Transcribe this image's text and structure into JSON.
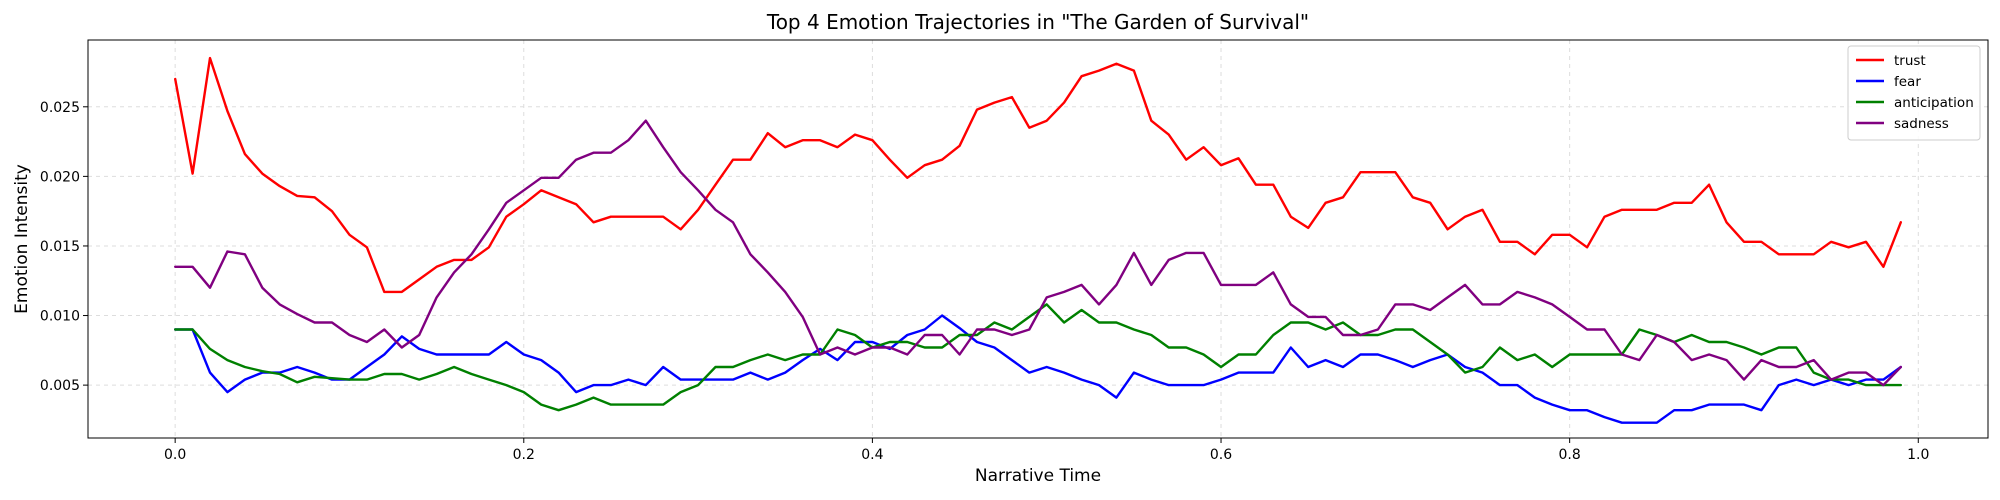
{
  "chart_data": {
    "type": "line",
    "title": "Top 4 Emotion Trajectories in \"The Garden of Survival\"",
    "xlabel": "Narrative Time",
    "ylabel": "Emotion Intensity",
    "xlim": [
      -0.05,
      1.04
    ],
    "ylim": [
      0.0012,
      0.0298
    ],
    "xticks": [
      0.0,
      0.2,
      0.4,
      0.6,
      0.8,
      1.0
    ],
    "xtick_labels": [
      "0.0",
      "0.2",
      "0.4",
      "0.6",
      "0.8",
      "1.0"
    ],
    "yticks": [
      0.005,
      0.01,
      0.015,
      0.02,
      0.025
    ],
    "ytick_labels": [
      "0.005",
      "0.010",
      "0.015",
      "0.020",
      "0.025"
    ],
    "grid": true,
    "legend_position": "top-right",
    "x": [
      0.0,
      0.01,
      0.02,
      0.03,
      0.04,
      0.05,
      0.06,
      0.07,
      0.08,
      0.09,
      0.1,
      0.11,
      0.12,
      0.13,
      0.14,
      0.15,
      0.16,
      0.17,
      0.18,
      0.19,
      0.2,
      0.21,
      0.22,
      0.23,
      0.24,
      0.25,
      0.26,
      0.27,
      0.28,
      0.29,
      0.3,
      0.31,
      0.32,
      0.33,
      0.34,
      0.35,
      0.36,
      0.37,
      0.38,
      0.39,
      0.4,
      0.41,
      0.42,
      0.43,
      0.44,
      0.45,
      0.46,
      0.47,
      0.48,
      0.49,
      0.5,
      0.51,
      0.52,
      0.53,
      0.54,
      0.55,
      0.56,
      0.57,
      0.58,
      0.59,
      0.6,
      0.61,
      0.62,
      0.63,
      0.64,
      0.65,
      0.66,
      0.67,
      0.68,
      0.69,
      0.7,
      0.71,
      0.72,
      0.73,
      0.74,
      0.75,
      0.76,
      0.77,
      0.78,
      0.79,
      0.8,
      0.81,
      0.82,
      0.83,
      0.84,
      0.85,
      0.86,
      0.87,
      0.88,
      0.89,
      0.9,
      0.91,
      0.92,
      0.93,
      0.94,
      0.95,
      0.96,
      0.97,
      0.98,
      0.99
    ],
    "series": [
      {
        "name": "trust",
        "color": "#ff0000",
        "values": [
          0.027,
          0.0202,
          0.0285,
          0.0247,
          0.0216,
          0.0202,
          0.0193,
          0.0186,
          0.0185,
          0.0175,
          0.0158,
          0.0149,
          0.0117,
          0.0117,
          0.0126,
          0.0135,
          0.014,
          0.014,
          0.0149,
          0.0171,
          0.018,
          0.019,
          0.0185,
          0.018,
          0.0167,
          0.0171,
          0.0171,
          0.0171,
          0.0171,
          0.0162,
          0.0176,
          0.0194,
          0.0212,
          0.0212,
          0.0231,
          0.0221,
          0.0226,
          0.0226,
          0.0221,
          0.023,
          0.0226,
          0.0212,
          0.0199,
          0.0208,
          0.0212,
          0.0222,
          0.0248,
          0.0253,
          0.0257,
          0.0235,
          0.024,
          0.0253,
          0.0272,
          0.0276,
          0.0281,
          0.0276,
          0.024,
          0.023,
          0.0212,
          0.0221,
          0.0208,
          0.0213,
          0.0194,
          0.0194,
          0.0171,
          0.0163,
          0.0181,
          0.0185,
          0.0203,
          0.0203,
          0.0203,
          0.0185,
          0.0181,
          0.0162,
          0.0171,
          0.0176,
          0.0153,
          0.0153,
          0.0144,
          0.0158,
          0.0158,
          0.0149,
          0.0171,
          0.0176,
          0.0176,
          0.0176,
          0.0181,
          0.0181,
          0.0194,
          0.0167,
          0.0153,
          0.0153,
          0.0144,
          0.0144,
          0.0144,
          0.0153,
          0.0149,
          0.0153,
          0.0135,
          0.0167
        ]
      },
      {
        "name": "fear",
        "color": "#0000ff",
        "values": [
          0.009,
          0.009,
          0.0059,
          0.0045,
          0.0054,
          0.0059,
          0.0059,
          0.0063,
          0.0059,
          0.0054,
          0.0054,
          0.0063,
          0.0072,
          0.0085,
          0.0076,
          0.0072,
          0.0072,
          0.0072,
          0.0072,
          0.0081,
          0.0072,
          0.0068,
          0.0059,
          0.0045,
          0.005,
          0.005,
          0.0054,
          0.005,
          0.0063,
          0.0054,
          0.0054,
          0.0054,
          0.0054,
          0.0059,
          0.0054,
          0.0059,
          0.0068,
          0.0076,
          0.0068,
          0.0081,
          0.0081,
          0.0076,
          0.0086,
          0.009,
          0.01,
          0.0091,
          0.0081,
          0.0077,
          0.0068,
          0.0059,
          0.0063,
          0.0059,
          0.0054,
          0.005,
          0.0041,
          0.0059,
          0.0054,
          0.005,
          0.005,
          0.005,
          0.0054,
          0.0059,
          0.0059,
          0.0059,
          0.0077,
          0.0063,
          0.0068,
          0.0063,
          0.0072,
          0.0072,
          0.0068,
          0.0063,
          0.0068,
          0.0072,
          0.0063,
          0.0059,
          0.005,
          0.005,
          0.0041,
          0.0036,
          0.0032,
          0.0032,
          0.0027,
          0.0023,
          0.0023,
          0.0023,
          0.0032,
          0.0032,
          0.0036,
          0.0036,
          0.0036,
          0.0032,
          0.005,
          0.0054,
          0.005,
          0.0054,
          0.005,
          0.0054,
          0.0054,
          0.0063
        ]
      },
      {
        "name": "anticipation",
        "color": "#008000",
        "values": [
          0.009,
          0.009,
          0.0076,
          0.0068,
          0.0063,
          0.006,
          0.0058,
          0.0052,
          0.0056,
          0.0055,
          0.0054,
          0.0054,
          0.0058,
          0.0058,
          0.0054,
          0.0058,
          0.0063,
          0.0058,
          0.0054,
          0.005,
          0.0045,
          0.0036,
          0.0032,
          0.0036,
          0.0041,
          0.0036,
          0.0036,
          0.0036,
          0.0036,
          0.0045,
          0.005,
          0.0063,
          0.0063,
          0.0068,
          0.0072,
          0.0068,
          0.0072,
          0.0072,
          0.009,
          0.0086,
          0.0077,
          0.0081,
          0.0081,
          0.0077,
          0.0077,
          0.0086,
          0.0086,
          0.0095,
          0.009,
          0.0099,
          0.0108,
          0.0095,
          0.0104,
          0.0095,
          0.0095,
          0.009,
          0.0086,
          0.0077,
          0.0077,
          0.0072,
          0.0063,
          0.0072,
          0.0072,
          0.0086,
          0.0095,
          0.0095,
          0.009,
          0.0095,
          0.0086,
          0.0086,
          0.009,
          0.009,
          0.0081,
          0.0072,
          0.0059,
          0.0063,
          0.0077,
          0.0068,
          0.0072,
          0.0063,
          0.0072,
          0.0072,
          0.0072,
          0.0072,
          0.009,
          0.0086,
          0.0081,
          0.0086,
          0.0081,
          0.0081,
          0.0077,
          0.0072,
          0.0077,
          0.0077,
          0.0059,
          0.0054,
          0.0054,
          0.005,
          0.005,
          0.005
        ]
      },
      {
        "name": "sadness",
        "color": "#800080",
        "values": [
          0.0135,
          0.0135,
          0.012,
          0.0146,
          0.0144,
          0.012,
          0.0108,
          0.0101,
          0.0095,
          0.0095,
          0.0086,
          0.0081,
          0.009,
          0.0077,
          0.0086,
          0.0113,
          0.0131,
          0.0144,
          0.0162,
          0.0181,
          0.019,
          0.0199,
          0.0199,
          0.0212,
          0.0217,
          0.0217,
          0.0226,
          0.024,
          0.0221,
          0.0203,
          0.019,
          0.0176,
          0.0167,
          0.0144,
          0.0131,
          0.0117,
          0.0099,
          0.0072,
          0.0077,
          0.0072,
          0.0077,
          0.0077,
          0.0072,
          0.0086,
          0.0086,
          0.0072,
          0.009,
          0.009,
          0.0086,
          0.009,
          0.0113,
          0.0117,
          0.0122,
          0.0108,
          0.0122,
          0.0145,
          0.0122,
          0.014,
          0.0145,
          0.0145,
          0.0122,
          0.0122,
          0.0122,
          0.0131,
          0.0108,
          0.0099,
          0.0099,
          0.0086,
          0.0086,
          0.009,
          0.0108,
          0.0108,
          0.0104,
          0.0113,
          0.0122,
          0.0108,
          0.0108,
          0.0117,
          0.0113,
          0.0108,
          0.0099,
          0.009,
          0.009,
          0.0072,
          0.0068,
          0.0086,
          0.0081,
          0.0068,
          0.0072,
          0.0068,
          0.0054,
          0.0068,
          0.0063,
          0.0063,
          0.0068,
          0.0054,
          0.0059,
          0.0059,
          0.005,
          0.0063
        ]
      }
    ]
  }
}
